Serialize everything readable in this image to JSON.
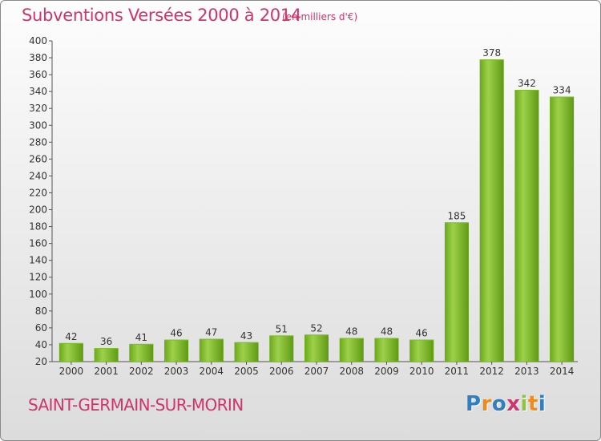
{
  "header": {
    "title": "Subventions Versées 2000 à 2014",
    "unit": "(en milliers d'€)"
  },
  "footer": {
    "place": "SAINT-GERMAIN-SUR-MORIN",
    "logo_text": "Proxiti"
  },
  "colors": {
    "accent": "#d1336c",
    "bar_light": "#9ed14b",
    "bar_dark": "#5e9a12"
  },
  "chart_data": {
    "type": "bar",
    "title": "Subventions Versées 2000 à 2014",
    "subtitle": "(en milliers d'€)",
    "categories": [
      "2000",
      "2001",
      "2002",
      "2003",
      "2004",
      "2005",
      "2006",
      "2007",
      "2008",
      "2009",
      "2010",
      "2011",
      "2012",
      "2013",
      "2014"
    ],
    "values": [
      42,
      36,
      41,
      46,
      47,
      43,
      51,
      52,
      48,
      48,
      46,
      185,
      378,
      342,
      334
    ],
    "ylim": [
      20,
      400
    ],
    "yticks": [
      20,
      40,
      60,
      80,
      100,
      120,
      140,
      160,
      180,
      200,
      220,
      240,
      260,
      280,
      300,
      320,
      340,
      360,
      380,
      400
    ],
    "grid": false,
    "data_labels": true
  }
}
